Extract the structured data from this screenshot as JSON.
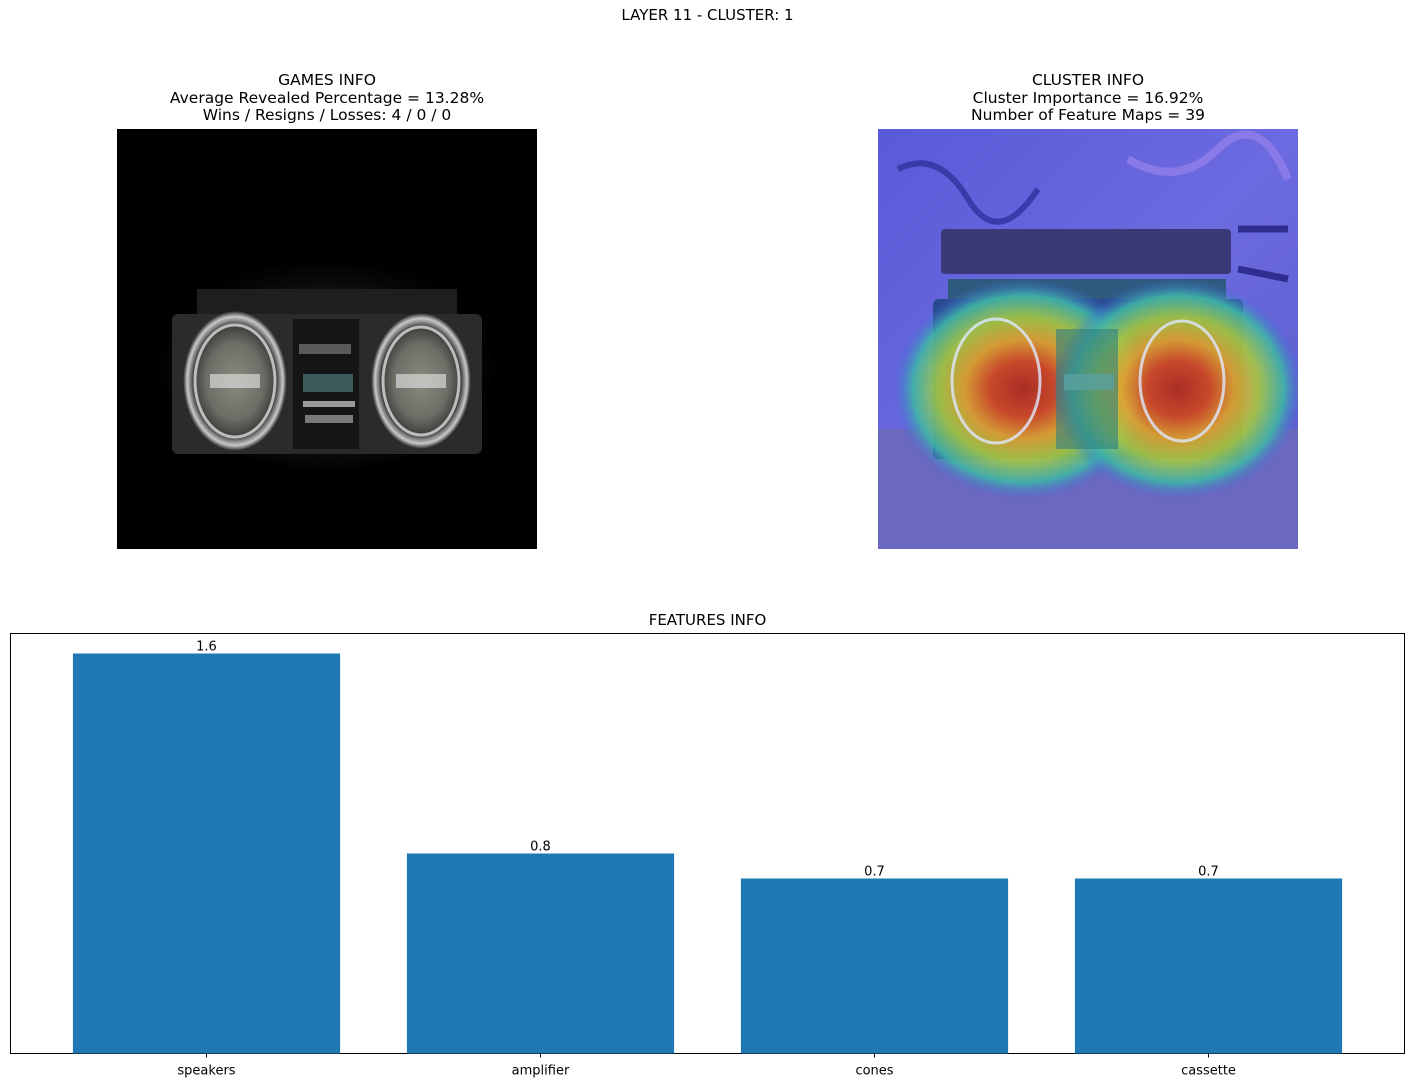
{
  "figure": {
    "suptitle": "LAYER 11 - CLUSTER: 1"
  },
  "games_info": {
    "title": "GAMES INFO",
    "line1": "Average Revealed Percentage = 13.28%",
    "line2": "Wins / Resigns / Losses: 4 / 0 / 0",
    "image_alt": "masked boombox image"
  },
  "cluster_info": {
    "title": "CLUSTER INFO",
    "line1": "Cluster Importance = 16.92%",
    "line2": "Number of Feature Maps = 39",
    "image_alt": "boombox image with heatmap overlay"
  },
  "features_info": {
    "title": "FEATURES INFO"
  },
  "chart_data": {
    "type": "bar",
    "title": "FEATURES INFO",
    "categories": [
      "speakers",
      "amplifier",
      "cones",
      "cassette"
    ],
    "values": [
      1.6,
      0.8,
      0.7,
      0.7
    ],
    "value_labels": [
      "1.6",
      "0.8",
      "0.7",
      "0.7"
    ],
    "xlabel": "",
    "ylabel": "",
    "ylim": [
      0,
      1.68
    ],
    "yticks_visible": false,
    "grid": false,
    "bar_color": "#1f77b4"
  }
}
